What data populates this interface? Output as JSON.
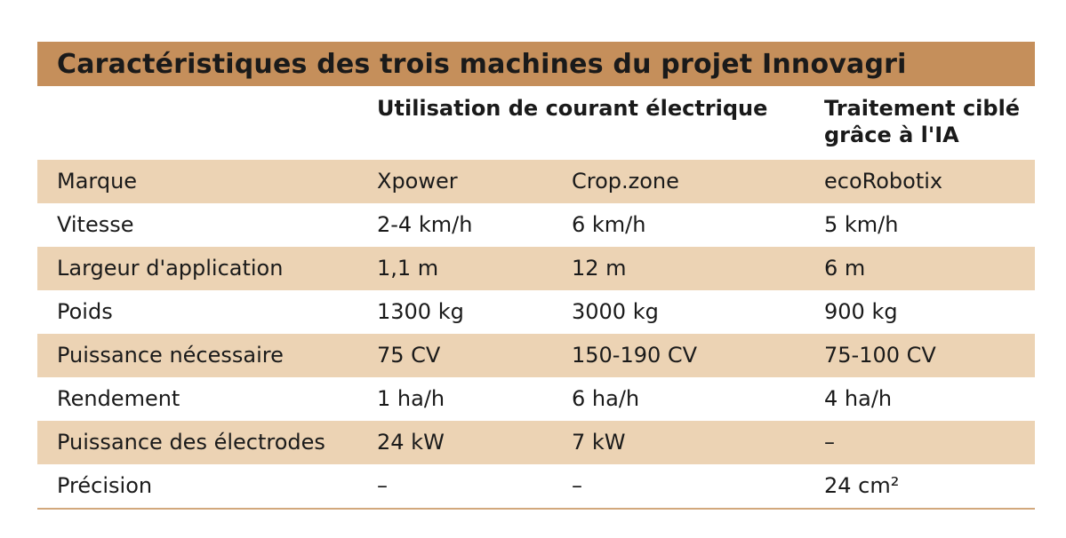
{
  "title": "Caractéristiques des trois machines du projet Innovagri",
  "groups": {
    "electric": "Utilisation de courant électrique",
    "ai_line1": "Traitement ciblé",
    "ai_line2": "grâce à l'IA"
  },
  "rows": [
    {
      "label": "Marque",
      "xpower": "Xpower",
      "cropzone": "Crop.zone",
      "ecorobotix": "ecoRobotix"
    },
    {
      "label": "Vitesse",
      "xpower": "2-4 km/h",
      "cropzone": "6 km/h",
      "ecorobotix": "5 km/h"
    },
    {
      "label": "Largeur d'application",
      "xpower": "1,1 m",
      "cropzone": "12 m",
      "ecorobotix": "6 m"
    },
    {
      "label": "Poids",
      "xpower": "1300 kg",
      "cropzone": "3000 kg",
      "ecorobotix": "900 kg"
    },
    {
      "label": "Puissance nécessaire",
      "xpower": "75 CV",
      "cropzone": "150-190 CV",
      "ecorobotix": "75-100 CV"
    },
    {
      "label": "Rendement",
      "xpower": "1 ha/h",
      "cropzone": "6 ha/h",
      "ecorobotix": "4 ha/h"
    },
    {
      "label": "Puissance des électrodes",
      "xpower": "24 kW",
      "cropzone": "7 kW",
      "ecorobotix": "–"
    },
    {
      "label": "Précision",
      "xpower": "–",
      "cropzone": "–",
      "ecorobotix": "24 cm²"
    }
  ],
  "colors": {
    "title_bar": "#c58f5b",
    "row_shade": "#ecd3b4"
  }
}
